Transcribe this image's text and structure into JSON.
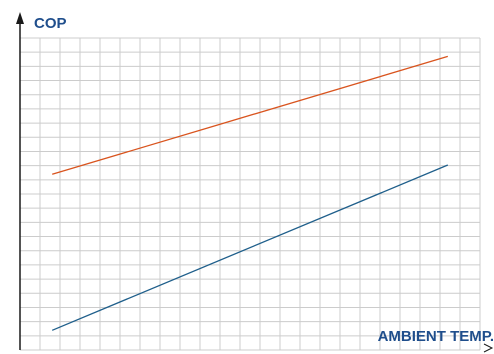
{
  "chart_data": {
    "type": "line",
    "ylabel": "COP",
    "xlabel": "AMBIENT TEMP.",
    "grid": true,
    "tick_labels": false,
    "colors": {
      "axis_title": "#1f4e8c",
      "grid": "#cccccc",
      "axis": "#1a1a1a",
      "upper_line": "#d9541e",
      "lower_line": "#1f5f8b"
    },
    "xlim": [
      0,
      1
    ],
    "ylim": [
      0,
      1
    ],
    "series": [
      {
        "color_key": "upper_line",
        "x": [
          0.07,
          0.93
        ],
        "y": [
          0.563,
          0.941
        ]
      },
      {
        "color_key": "lower_line",
        "x": [
          0.07,
          0.93
        ],
        "y": [
          0.063,
          0.593
        ]
      }
    ]
  }
}
